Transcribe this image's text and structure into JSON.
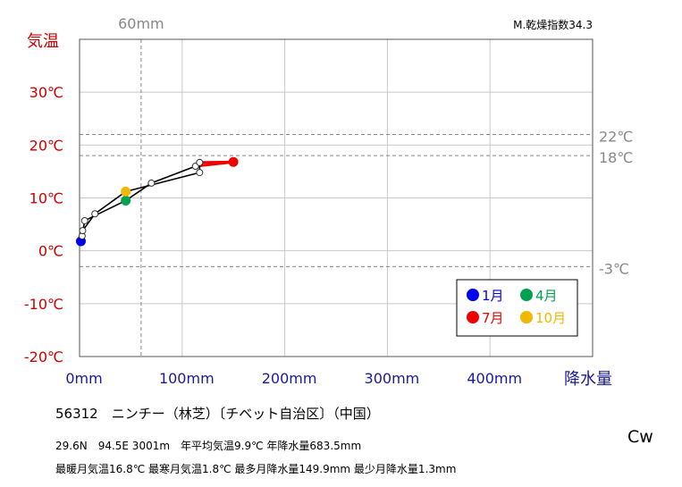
{
  "chart_data": {
    "type": "line",
    "index_label": "M.乾燥指数34.3",
    "y_axis_label": "気温",
    "x_axis_label": "降水量",
    "x_tick_labels": [
      "0mm",
      "100mm",
      "200mm",
      "300mm",
      "400mm"
    ],
    "y_tick_labels": [
      "30℃",
      "20℃",
      "10℃",
      "0℃",
      "-10℃",
      "-20℃"
    ],
    "x_ticks": [
      0,
      100,
      200,
      300,
      400
    ],
    "y_ticks": [
      30,
      20,
      10,
      0,
      -10,
      -20
    ],
    "xlim": [
      0,
      500
    ],
    "ylim": [
      -20,
      40
    ],
    "grid": true,
    "reference_lines": [
      {
        "axis": "x",
        "value": 60,
        "label": "60mm"
      },
      {
        "axis": "y",
        "value": 22,
        "label": "22℃"
      },
      {
        "axis": "y",
        "value": 18,
        "label": "18℃"
      },
      {
        "axis": "y",
        "value": -3,
        "label": "-3℃"
      }
    ],
    "monthly_points": [
      {
        "month": 1,
        "precip": 1.3,
        "temp": 1.8
      },
      {
        "month": 2,
        "precip": 2.5,
        "temp": 2.8
      },
      {
        "month": 3,
        "precip": 5,
        "temp": 5.7
      },
      {
        "month": 4,
        "precip": 45,
        "temp": 9.5
      },
      {
        "month": 5,
        "precip": 70,
        "temp": 12.8
      },
      {
        "month": 6,
        "precip": 113,
        "temp": 16
      },
      {
        "month": 7,
        "precip": 149.9,
        "temp": 16.8
      },
      {
        "month": 8,
        "precip": 117,
        "temp": 16.7
      },
      {
        "month": 9,
        "precip": 117,
        "temp": 14.8
      },
      {
        "month": 10,
        "precip": 45,
        "temp": 11.2
      },
      {
        "month": 11,
        "precip": 15,
        "temp": 7
      },
      {
        "month": 12,
        "precip": 3,
        "temp": 3.8
      }
    ],
    "legend": {
      "placement": "bottom-right",
      "entries": [
        {
          "label": "1月",
          "month": 1,
          "color": "#0000ee"
        },
        {
          "label": "4月",
          "month": 4,
          "color": "#00a050"
        },
        {
          "label": "7月",
          "month": 7,
          "color": "#ee0000"
        },
        {
          "label": "10月",
          "month": 10,
          "color": "#f0b800"
        }
      ]
    },
    "colors": {
      "temp_axis": "#cc0000",
      "precip_axis": "#1a1a99",
      "reference": "#888888",
      "line": "#000000",
      "summer_line": "#ee0000"
    }
  },
  "station": "56312　ニンチー（林芝）〔チベット自治区〕（中国）",
  "stats_line1": "29.6N　94.5E 3001m　年平均気温9.9℃ 年降水量683.5mm",
  "stats_line2": "最暖月気温16.8℃ 最寒月気温1.8℃ 最多月降水量149.9mm 最少月降水量1.3mm",
  "climate_code": "Cw"
}
